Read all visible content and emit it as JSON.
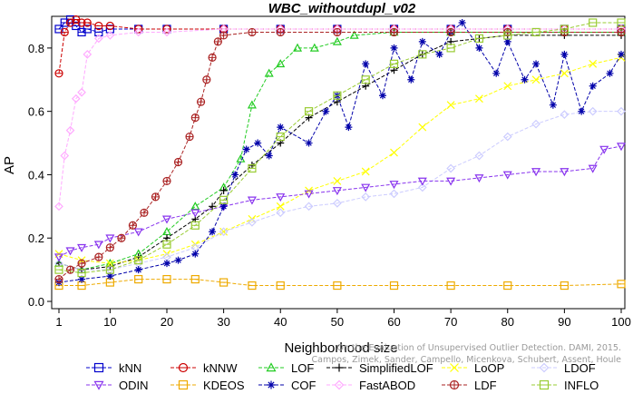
{
  "chart_data": {
    "type": "line",
    "title": "WBC_withoutdupl_v02",
    "xlabel": "Neighborhood size",
    "ylabel": "AP",
    "xlim": [
      1,
      100
    ],
    "ylim": [
      0,
      0.9
    ],
    "xticks": [
      1,
      10,
      20,
      30,
      40,
      50,
      60,
      70,
      80,
      90,
      100
    ],
    "yticks": [
      0.0,
      0.2,
      0.4,
      0.6,
      0.8
    ],
    "ytick_labels": [
      "0.0",
      "0.2",
      "0.4",
      "0.6",
      "0.8"
    ],
    "grid": false,
    "legend_position": "bottom",
    "credit": "Campos, Zimek, Sander, Campello, Micenkova, Schubert, Assent, Houle",
    "credit_line1": "On the Evaluation of Unsupervised Outlier Detection. DAMI, 2015.",
    "series": [
      {
        "name": "kNN",
        "color": "#0000CC",
        "marker": "square-x",
        "points": [
          [
            1,
            0.86
          ],
          [
            2,
            0.88
          ],
          [
            3,
            0.89
          ],
          [
            4,
            0.87
          ],
          [
            5,
            0.85
          ],
          [
            6,
            0.86
          ],
          [
            8,
            0.85
          ],
          [
            10,
            0.86
          ],
          [
            15,
            0.86
          ],
          [
            20,
            0.86
          ],
          [
            30,
            0.86
          ],
          [
            40,
            0.86
          ],
          [
            50,
            0.86
          ],
          [
            60,
            0.86
          ],
          [
            70,
            0.86
          ],
          [
            80,
            0.86
          ],
          [
            90,
            0.86
          ],
          [
            100,
            0.86
          ]
        ]
      },
      {
        "name": "kNNW",
        "color": "#CC0000",
        "marker": "circle-line",
        "points": [
          [
            1,
            0.72
          ],
          [
            2,
            0.85
          ],
          [
            3,
            0.88
          ],
          [
            4,
            0.89
          ],
          [
            5,
            0.88
          ],
          [
            6,
            0.88
          ],
          [
            8,
            0.87
          ],
          [
            10,
            0.87
          ],
          [
            15,
            0.86
          ],
          [
            20,
            0.86
          ],
          [
            30,
            0.86
          ],
          [
            40,
            0.86
          ],
          [
            50,
            0.86
          ],
          [
            60,
            0.86
          ],
          [
            70,
            0.86
          ],
          [
            80,
            0.86
          ],
          [
            90,
            0.86
          ],
          [
            100,
            0.86
          ]
        ]
      },
      {
        "name": "LOF",
        "color": "#22CC22",
        "marker": "triangle",
        "points": [
          [
            1,
            0.12
          ],
          [
            5,
            0.1
          ],
          [
            10,
            0.12
          ],
          [
            15,
            0.15
          ],
          [
            20,
            0.22
          ],
          [
            25,
            0.3
          ],
          [
            30,
            0.36
          ],
          [
            33,
            0.45
          ],
          [
            35,
            0.62
          ],
          [
            38,
            0.72
          ],
          [
            40,
            0.75
          ],
          [
            43,
            0.8
          ],
          [
            46,
            0.8
          ],
          [
            50,
            0.82
          ],
          [
            53,
            0.84
          ],
          [
            60,
            0.85
          ],
          [
            70,
            0.85
          ],
          [
            80,
            0.85
          ],
          [
            90,
            0.85
          ],
          [
            100,
            0.85
          ]
        ]
      },
      {
        "name": "SimplifiedLOF",
        "color": "#000000",
        "marker": "plus",
        "points": [
          [
            1,
            0.12
          ],
          [
            5,
            0.1
          ],
          [
            10,
            0.11
          ],
          [
            15,
            0.14
          ],
          [
            20,
            0.2
          ],
          [
            25,
            0.26
          ],
          [
            28,
            0.3
          ],
          [
            30,
            0.35
          ],
          [
            35,
            0.43
          ],
          [
            40,
            0.5
          ],
          [
            45,
            0.58
          ],
          [
            50,
            0.63
          ],
          [
            55,
            0.68
          ],
          [
            60,
            0.73
          ],
          [
            65,
            0.78
          ],
          [
            70,
            0.82
          ],
          [
            75,
            0.83
          ],
          [
            80,
            0.84
          ],
          [
            90,
            0.84
          ],
          [
            100,
            0.84
          ]
        ]
      },
      {
        "name": "LoOP",
        "color": "#FFFF00",
        "marker": "x",
        "points": [
          [
            1,
            0.15
          ],
          [
            5,
            0.13
          ],
          [
            10,
            0.12
          ],
          [
            15,
            0.13
          ],
          [
            20,
            0.15
          ],
          [
            25,
            0.18
          ],
          [
            30,
            0.22
          ],
          [
            35,
            0.26
          ],
          [
            40,
            0.3
          ],
          [
            45,
            0.35
          ],
          [
            50,
            0.38
          ],
          [
            55,
            0.41
          ],
          [
            60,
            0.47
          ],
          [
            65,
            0.55
          ],
          [
            70,
            0.62
          ],
          [
            75,
            0.64
          ],
          [
            80,
            0.68
          ],
          [
            85,
            0.7
          ],
          [
            90,
            0.72
          ],
          [
            95,
            0.75
          ],
          [
            100,
            0.77
          ]
        ]
      },
      {
        "name": "LDOF",
        "color": "#CCCCFF",
        "marker": "diamond",
        "points": [
          [
            1,
            0.12
          ],
          [
            5,
            0.1
          ],
          [
            10,
            0.1
          ],
          [
            15,
            0.12
          ],
          [
            20,
            0.14
          ],
          [
            25,
            0.17
          ],
          [
            30,
            0.22
          ],
          [
            35,
            0.25
          ],
          [
            40,
            0.28
          ],
          [
            45,
            0.3
          ],
          [
            50,
            0.31
          ],
          [
            55,
            0.33
          ],
          [
            60,
            0.34
          ],
          [
            65,
            0.36
          ],
          [
            70,
            0.42
          ],
          [
            75,
            0.46
          ],
          [
            80,
            0.52
          ],
          [
            85,
            0.56
          ],
          [
            90,
            0.59
          ],
          [
            95,
            0.6
          ],
          [
            100,
            0.6
          ]
        ]
      },
      {
        "name": "ODIN",
        "color": "#8833EE",
        "marker": "triangle-down",
        "points": [
          [
            1,
            0.14
          ],
          [
            3,
            0.16
          ],
          [
            5,
            0.17
          ],
          [
            8,
            0.18
          ],
          [
            10,
            0.2
          ],
          [
            15,
            0.22
          ],
          [
            20,
            0.26
          ],
          [
            25,
            0.28
          ],
          [
            30,
            0.3
          ],
          [
            35,
            0.32
          ],
          [
            40,
            0.33
          ],
          [
            45,
            0.34
          ],
          [
            50,
            0.35
          ],
          [
            55,
            0.36
          ],
          [
            60,
            0.37
          ],
          [
            65,
            0.38
          ],
          [
            70,
            0.38
          ],
          [
            75,
            0.39
          ],
          [
            80,
            0.4
          ],
          [
            85,
            0.41
          ],
          [
            90,
            0.41
          ],
          [
            95,
            0.42
          ],
          [
            97,
            0.48
          ],
          [
            100,
            0.49
          ]
        ]
      },
      {
        "name": "KDEOS",
        "color": "#EEAA00",
        "marker": "square-x",
        "points": [
          [
            1,
            0.05
          ],
          [
            5,
            0.05
          ],
          [
            10,
            0.06
          ],
          [
            15,
            0.07
          ],
          [
            20,
            0.07
          ],
          [
            25,
            0.07
          ],
          [
            30,
            0.06
          ],
          [
            35,
            0.05
          ],
          [
            40,
            0.05
          ],
          [
            50,
            0.05
          ],
          [
            60,
            0.05
          ],
          [
            70,
            0.05
          ],
          [
            80,
            0.05
          ],
          [
            90,
            0.05
          ],
          [
            100,
            0.055
          ]
        ]
      },
      {
        "name": "COF",
        "color": "#0000AA",
        "marker": "star",
        "points": [
          [
            1,
            0.06
          ],
          [
            5,
            0.07
          ],
          [
            10,
            0.08
          ],
          [
            15,
            0.1
          ],
          [
            20,
            0.12
          ],
          [
            22,
            0.13
          ],
          [
            25,
            0.15
          ],
          [
            28,
            0.22
          ],
          [
            30,
            0.3
          ],
          [
            32,
            0.4
          ],
          [
            34,
            0.48
          ],
          [
            36,
            0.5
          ],
          [
            38,
            0.46
          ],
          [
            40,
            0.55
          ],
          [
            45,
            0.5
          ],
          [
            48,
            0.6
          ],
          [
            50,
            0.65
          ],
          [
            52,
            0.55
          ],
          [
            55,
            0.75
          ],
          [
            58,
            0.65
          ],
          [
            60,
            0.8
          ],
          [
            63,
            0.7
          ],
          [
            65,
            0.82
          ],
          [
            68,
            0.78
          ],
          [
            70,
            0.85
          ],
          [
            72,
            0.88
          ],
          [
            75,
            0.8
          ],
          [
            78,
            0.72
          ],
          [
            80,
            0.82
          ],
          [
            83,
            0.7
          ],
          [
            85,
            0.75
          ],
          [
            88,
            0.62
          ],
          [
            90,
            0.78
          ],
          [
            93,
            0.6
          ],
          [
            95,
            0.68
          ],
          [
            98,
            0.72
          ],
          [
            100,
            0.78
          ]
        ]
      },
      {
        "name": "FastABOD",
        "color": "#FFAAFF",
        "marker": "diamond",
        "points": [
          [
            1,
            0.3
          ],
          [
            2,
            0.46
          ],
          [
            3,
            0.54
          ],
          [
            4,
            0.64
          ],
          [
            5,
            0.66
          ],
          [
            6,
            0.78
          ],
          [
            8,
            0.83
          ],
          [
            10,
            0.84
          ],
          [
            15,
            0.85
          ],
          [
            20,
            0.85
          ],
          [
            30,
            0.86
          ],
          [
            40,
            0.86
          ],
          [
            50,
            0.86
          ],
          [
            60,
            0.86
          ],
          [
            70,
            0.86
          ],
          [
            80,
            0.86
          ],
          [
            90,
            0.86
          ],
          [
            100,
            0.86
          ]
        ]
      },
      {
        "name": "LDF",
        "color": "#AA2222",
        "marker": "circle-plus",
        "points": [
          [
            1,
            0.07
          ],
          [
            3,
            0.1
          ],
          [
            5,
            0.12
          ],
          [
            8,
            0.14
          ],
          [
            10,
            0.17
          ],
          [
            12,
            0.2
          ],
          [
            14,
            0.24
          ],
          [
            16,
            0.28
          ],
          [
            18,
            0.33
          ],
          [
            20,
            0.38
          ],
          [
            22,
            0.44
          ],
          [
            24,
            0.52
          ],
          [
            25,
            0.58
          ],
          [
            26,
            0.63
          ],
          [
            27,
            0.7
          ],
          [
            28,
            0.77
          ],
          [
            29,
            0.82
          ],
          [
            30,
            0.84
          ],
          [
            35,
            0.85
          ],
          [
            40,
            0.85
          ],
          [
            50,
            0.85
          ],
          [
            60,
            0.85
          ],
          [
            70,
            0.85
          ],
          [
            80,
            0.85
          ],
          [
            90,
            0.85
          ],
          [
            100,
            0.85
          ]
        ]
      },
      {
        "name": "INFLO",
        "color": "#99CC33",
        "marker": "square-x",
        "points": [
          [
            1,
            0.1
          ],
          [
            5,
            0.09
          ],
          [
            10,
            0.1
          ],
          [
            15,
            0.13
          ],
          [
            20,
            0.18
          ],
          [
            25,
            0.24
          ],
          [
            30,
            0.32
          ],
          [
            35,
            0.42
          ],
          [
            40,
            0.52
          ],
          [
            45,
            0.6
          ],
          [
            50,
            0.65
          ],
          [
            55,
            0.7
          ],
          [
            60,
            0.75
          ],
          [
            65,
            0.78
          ],
          [
            70,
            0.8
          ],
          [
            75,
            0.83
          ],
          [
            80,
            0.84
          ],
          [
            85,
            0.85
          ],
          [
            90,
            0.86
          ],
          [
            95,
            0.88
          ],
          [
            100,
            0.88
          ]
        ]
      }
    ],
    "legend_rows": [
      [
        "kNN",
        "kNNW",
        "LOF",
        "SimplifiedLOF",
        "LoOP",
        "LDOF"
      ],
      [
        "ODIN",
        "KDEOS",
        "COF",
        "FastABOD",
        "LDF",
        "INFLO"
      ]
    ]
  }
}
